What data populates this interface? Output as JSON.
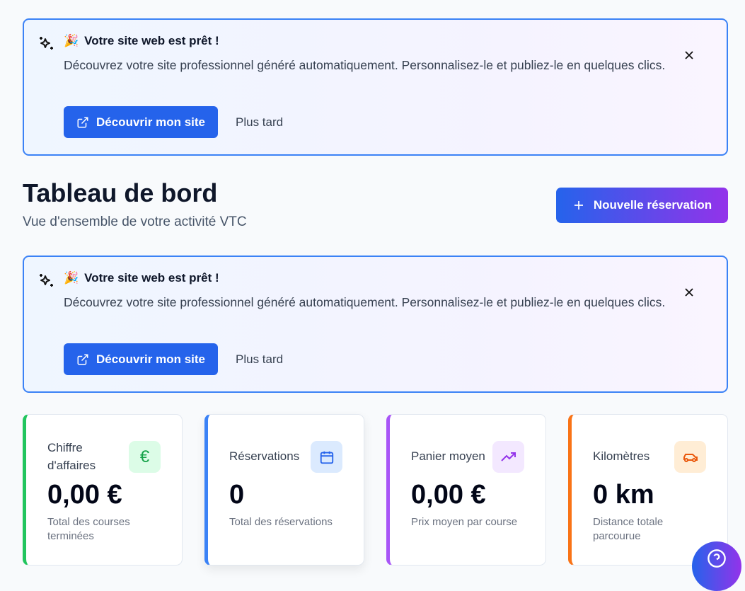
{
  "banner": {
    "emoji": "🎉",
    "title": "Votre site web est prêt !",
    "body": "Découvrez votre site professionnel généré automatiquement. Personnalisez-le et publiez-le en quelques clics.",
    "cta": "Découvrir mon site",
    "later": "Plus tard"
  },
  "header": {
    "title": "Tableau de bord",
    "subtitle": "Vue d'ensemble de votre activité VTC",
    "new_button": "Nouvelle réservation"
  },
  "cards": [
    {
      "label": "Chiffre d'affaires",
      "value": "0,00 €",
      "desc": "Total des courses terminées",
      "icon": "euro-icon",
      "color": "#22c55e"
    },
    {
      "label": "Réservations",
      "value": "0",
      "desc": "Total des réservations",
      "icon": "calendar-icon",
      "color": "#3b82f6"
    },
    {
      "label": "Panier moyen",
      "value": "0,00 €",
      "desc": "Prix moyen par course",
      "icon": "trending-up-icon",
      "color": "#a855f7"
    },
    {
      "label": "Kilomètres",
      "value": "0 km",
      "desc": "Distance totale parcourue",
      "icon": "car-icon",
      "color": "#f97316"
    }
  ]
}
